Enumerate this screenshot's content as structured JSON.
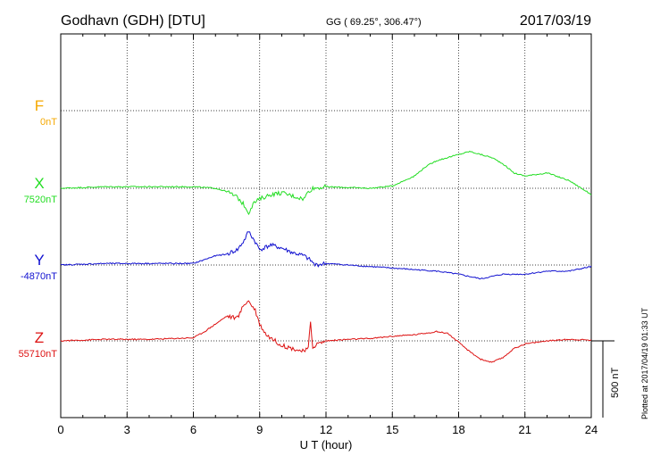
{
  "header": {
    "station": "Godhavn (GDH)  [DTU]",
    "coords": "GG ( 69.25°, 306.47°)",
    "date": "2017/03/19"
  },
  "chart_data": {
    "type": "line",
    "xlabel": "U T (hour)",
    "xlim": [
      0,
      24
    ],
    "xticks": [
      0,
      3,
      6,
      9,
      12,
      15,
      18,
      21,
      24
    ],
    "grid": true,
    "scale_bar": {
      "label": "500 nT",
      "value_nT": 500
    },
    "footer": "Plotted at 2017/04/19 01:33 UT",
    "series": [
      {
        "name": "F",
        "baseline_label": "0nT",
        "color": "#f5a800",
        "times": [],
        "values": []
      },
      {
        "name": "X",
        "baseline_label": "7520nT",
        "color": "#22dd22",
        "times": [
          0,
          1,
          2,
          3,
          4,
          5,
          6,
          7,
          7.5,
          8,
          8.3,
          8.5,
          8.7,
          9,
          9.5,
          10,
          10.5,
          11,
          11.2,
          11.4,
          12,
          13,
          14,
          15,
          16,
          16.5,
          17,
          17.5,
          18,
          18.5,
          19,
          19.5,
          20,
          20.5,
          21,
          22,
          23,
          24
        ],
        "values": [
          0,
          5,
          10,
          10,
          10,
          10,
          10,
          0,
          -20,
          -60,
          -110,
          -160,
          -100,
          -70,
          -40,
          -30,
          -50,
          -70,
          -20,
          0,
          10,
          5,
          0,
          15,
          80,
          140,
          180,
          200,
          220,
          240,
          220,
          200,
          160,
          100,
          80,
          100,
          50,
          -40
        ]
      },
      {
        "name": "Y",
        "baseline_label": "-4870nT",
        "color": "#1010d0",
        "times": [
          0,
          2,
          4,
          6,
          7,
          7.5,
          8,
          8.3,
          8.5,
          8.8,
          9,
          9.5,
          10,
          10.5,
          11,
          11.3,
          11.5,
          12,
          13,
          14,
          15,
          16,
          17,
          18,
          19,
          20,
          21,
          22,
          23,
          24
        ],
        "values": [
          0,
          10,
          10,
          10,
          60,
          70,
          100,
          160,
          220,
          150,
          100,
          130,
          110,
          80,
          60,
          30,
          0,
          10,
          0,
          -10,
          -20,
          -30,
          -40,
          -60,
          -90,
          -60,
          -60,
          -40,
          -40,
          -10
        ]
      },
      {
        "name": "Z",
        "baseline_label": "55710nT",
        "color": "#dd1111",
        "times": [
          0,
          2,
          4,
          6,
          6.5,
          7,
          7.5,
          8,
          8.3,
          8.5,
          8.8,
          9,
          9.3,
          9.6,
          10,
          10.5,
          11,
          11.2,
          11.3,
          11.4,
          11.6,
          12,
          13,
          14,
          15,
          16,
          17,
          17.5,
          18,
          18.5,
          19,
          19.5,
          20,
          20.5,
          21,
          22,
          23,
          24
        ],
        "values": [
          0,
          10,
          10,
          20,
          60,
          110,
          160,
          150,
          240,
          260,
          200,
          110,
          40,
          10,
          -30,
          -50,
          -70,
          -50,
          120,
          -40,
          -20,
          0,
          10,
          15,
          30,
          40,
          60,
          50,
          -10,
          -70,
          -120,
          -140,
          -110,
          -50,
          -20,
          0,
          10,
          5
        ]
      }
    ]
  }
}
